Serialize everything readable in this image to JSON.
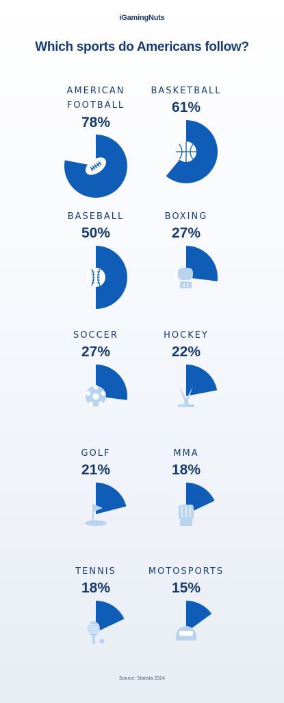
{
  "brand": "iGamingNuts",
  "title": "Which sports do Americans follow?",
  "source": "Source: Statista 2024",
  "colors": {
    "accent": "#0f5db6",
    "icon_light": "#b9d3ef",
    "text": "#173a6e"
  },
  "chart_data": {
    "type": "pie",
    "title": "Which sports do Americans follow?",
    "unit": "%",
    "items": [
      {
        "label": "AMERICAN FOOTBALL",
        "label_lines": [
          "AMERICAN",
          "FOOTBALL"
        ],
        "pct_text": "78%",
        "value": 78,
        "icon": "american-football-icon"
      },
      {
        "label": "BASKETBALL",
        "label_lines": [
          "BASKETBALL"
        ],
        "pct_text": "61%",
        "value": 61,
        "icon": "basketball-icon"
      },
      {
        "label": "BASEBALL",
        "label_lines": [
          "BASEBALL"
        ],
        "pct_text": "50%",
        "value": 50,
        "icon": "baseball-icon"
      },
      {
        "label": "BOXING",
        "label_lines": [
          "BOXING"
        ],
        "pct_text": "27%",
        "value": 27,
        "icon": "boxing-glove-icon"
      },
      {
        "label": "SOCCER",
        "label_lines": [
          "SOCCER"
        ],
        "pct_text": "27%",
        "value": 27,
        "icon": "soccer-ball-icon"
      },
      {
        "label": "HOCKEY",
        "label_lines": [
          "HOCKEY"
        ],
        "pct_text": "22%",
        "value": 22,
        "icon": "hockey-sticks-icon"
      },
      {
        "label": "GOLF",
        "label_lines": [
          "GOLF"
        ],
        "pct_text": "21%",
        "value": 21,
        "icon": "golf-flag-icon"
      },
      {
        "label": "MMA",
        "label_lines": [
          "MMA"
        ],
        "pct_text": "18%",
        "value": 18,
        "icon": "mma-glove-icon"
      },
      {
        "label": "TENNIS",
        "label_lines": [
          "TENNIS"
        ],
        "pct_text": "18%",
        "value": 18,
        "icon": "tennis-racket-icon"
      },
      {
        "label": "MOTOSPORTS",
        "label_lines": [
          "MOTOSPORTS"
        ],
        "pct_text": "15%",
        "value": 15,
        "icon": "racing-helmet-icon"
      }
    ]
  }
}
